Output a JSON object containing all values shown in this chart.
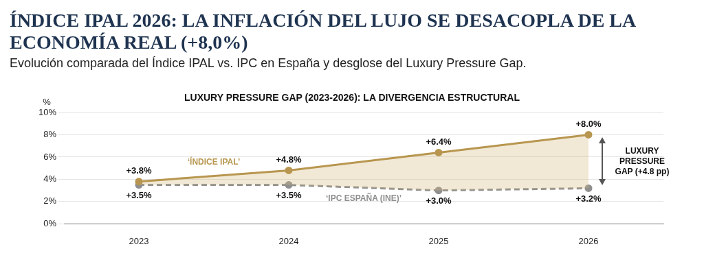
{
  "chart_data": {
    "type": "line",
    "title": "ÍNDICE IPAL 2026: LA INFLACIÓN DEL LUJO SE DESACOPLA DE LA ECONOMÍA REAL (+8,0%)",
    "subtitle": "Evolución comparada del Índice IPAL vs. IPC en España y desglose del Luxury Pressure Gap.",
    "ylabel": "%",
    "categories": [
      "2023",
      "2024",
      "2025",
      "2026"
    ],
    "series": [
      {
        "name": "‘ÍNDICE IPAL’",
        "type": "area",
        "color": "#b8964f",
        "values": [
          3.8,
          4.8,
          6.4,
          8.0
        ],
        "value_labels": [
          "+3.8%",
          "+4.8%",
          "+6.4%",
          "+8.0%"
        ],
        "line_style": "solid"
      },
      {
        "name": "‘IPC ESPAÑA (INE)’",
        "color": "#8f8f8f",
        "values": [
          3.5,
          3.5,
          3.0,
          3.2
        ],
        "value_labels": [
          "+3.5%",
          "+3.5%",
          "+3.0%",
          "+3.2%"
        ],
        "line_style": "dashed"
      }
    ],
    "ylim": [
      0,
      10
    ],
    "yticks": [
      {
        "value": 0,
        "label": "0%"
      },
      {
        "value": 2,
        "label": "2%"
      },
      {
        "value": 4,
        "label": "4%"
      },
      {
        "value": 6,
        "label": "6%"
      },
      {
        "value": 8,
        "label": "8%"
      },
      {
        "value": 10,
        "label": "10%"
      }
    ],
    "grid": "y",
    "marker": "circle",
    "annotations": [
      "LUXURY PRESSURE GAP (2023-2026): LA DIVERGENCIA ESTRUCTURAL",
      "LUXURY PRESSURE GAP (+4.8 pp)"
    ]
  }
}
